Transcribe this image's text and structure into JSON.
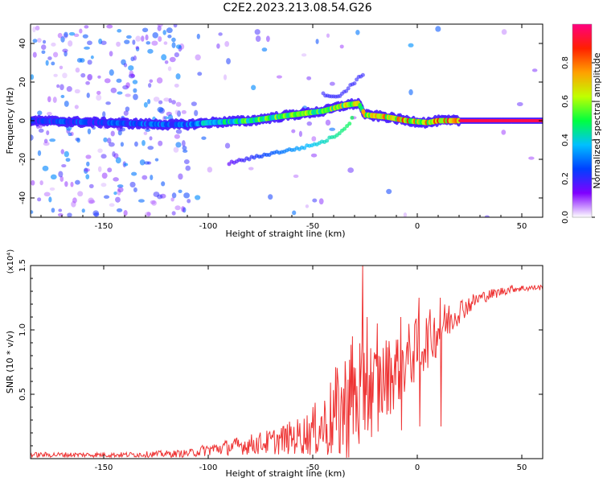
{
  "title": "C2E2.2023.213.08.54.G26",
  "chart_data": [
    {
      "type": "heatmap",
      "xlabel": "Height of straight line (km)",
      "ylabel": "Frequency (Hz)",
      "xlim": [
        -185,
        60
      ],
      "ylim": [
        -50,
        50
      ],
      "xticks": [
        -150,
        -100,
        -50,
        0,
        50
      ],
      "yticks": [
        -40,
        -20,
        0,
        20,
        40
      ],
      "colorbar": {
        "label": "Normalized spectral amplitude",
        "range": [
          0,
          1
        ],
        "ticks": [
          "0.0",
          "0.2",
          "0.4",
          "0.6",
          "0.8"
        ],
        "colormap": [
          "#ffffff",
          "#8000ff",
          "#0040ff",
          "#00c0ff",
          "#00ff40",
          "#c0ff00",
          "#ffa000",
          "#ff2000",
          "#ff0080"
        ]
      },
      "ridge": [
        {
          "x": -185,
          "freq": 0,
          "amp": 0.3
        },
        {
          "x": -150,
          "freq": -1,
          "amp": 0.3
        },
        {
          "x": -120,
          "freq": -2,
          "amp": 0.35
        },
        {
          "x": -110,
          "freq": -2,
          "amp": 0.35
        },
        {
          "x": -100,
          "freq": -1,
          "amp": 0.45
        },
        {
          "x": -80,
          "freq": 0,
          "amp": 0.6
        },
        {
          "x": -60,
          "freq": 3,
          "amp": 0.65
        },
        {
          "x": -45,
          "freq": 5,
          "amp": 0.7
        },
        {
          "x": -35,
          "freq": 8,
          "amp": 0.75
        },
        {
          "x": -28,
          "freq": 9,
          "amp": 0.7
        },
        {
          "x": -25,
          "freq": 3,
          "amp": 0.8
        },
        {
          "x": -15,
          "freq": 2,
          "amp": 0.85
        },
        {
          "x": -5,
          "freq": 0,
          "amp": 0.9
        },
        {
          "x": 5,
          "freq": -1,
          "amp": 0.85
        },
        {
          "x": 10,
          "freq": 0,
          "amp": 0.9
        },
        {
          "x": 20,
          "freq": 0,
          "amp": 0.95
        },
        {
          "x": 60,
          "freq": 0,
          "amp": 0.95
        }
      ],
      "secondary_branch": [
        {
          "x": -90,
          "freq": -22
        },
        {
          "x": -70,
          "freq": -17
        },
        {
          "x": -55,
          "freq": -14
        },
        {
          "x": -45,
          "freq": -11
        },
        {
          "x": -38,
          "freq": -7
        },
        {
          "x": -33,
          "freq": -2
        },
        {
          "x": -30,
          "freq": 3
        }
      ],
      "upper_branch": [
        {
          "x": -45,
          "freq": 14
        },
        {
          "x": -38,
          "freq": 12
        },
        {
          "x": -26,
          "freq": 24
        }
      ]
    },
    {
      "type": "line",
      "xlabel": "Height of straight line (km)",
      "ylabel": "SNR (10 * v/v)",
      "y_multiplier": "(x10⁴)",
      "xlim": [
        -185,
        60
      ],
      "ylim": [
        0,
        1.5
      ],
      "xticks": [
        -150,
        -100,
        -50,
        0,
        50
      ],
      "yticks": [
        0.5,
        1.0,
        1.5
      ],
      "color": "#ee3333",
      "envelope": [
        {
          "x": -185,
          "base": 0.03,
          "amp": 0.02
        },
        {
          "x": -140,
          "base": 0.03,
          "amp": 0.02
        },
        {
          "x": -110,
          "base": 0.04,
          "amp": 0.03
        },
        {
          "x": -100,
          "base": 0.07,
          "amp": 0.05
        },
        {
          "x": -85,
          "base": 0.1,
          "amp": 0.07
        },
        {
          "x": -70,
          "base": 0.13,
          "amp": 0.1
        },
        {
          "x": -55,
          "base": 0.18,
          "amp": 0.15
        },
        {
          "x": -45,
          "base": 0.25,
          "amp": 0.25
        },
        {
          "x": -38,
          "base": 0.35,
          "amp": 0.4
        },
        {
          "x": -30,
          "base": 0.45,
          "amp": 0.55
        },
        {
          "x": -25,
          "base": 0.55,
          "amp": 0.45
        },
        {
          "x": -20,
          "base": 0.55,
          "amp": 0.35
        },
        {
          "x": -10,
          "base": 0.7,
          "amp": 0.3
        },
        {
          "x": 0,
          "base": 0.85,
          "amp": 0.25
        },
        {
          "x": 10,
          "base": 1.0,
          "amp": 0.2
        },
        {
          "x": 20,
          "base": 1.15,
          "amp": 0.1
        },
        {
          "x": 30,
          "base": 1.25,
          "amp": 0.05
        },
        {
          "x": 45,
          "base": 1.32,
          "amp": 0.03
        },
        {
          "x": 60,
          "base": 1.33,
          "amp": 0.02
        }
      ],
      "peaks": [
        {
          "x": -26,
          "y": 1.5
        },
        {
          "x": -24,
          "y": 1.1
        },
        {
          "x": -31,
          "y": 0.95
        },
        {
          "x": -19,
          "y": 1.05
        },
        {
          "x": -8,
          "y": 1.1
        },
        {
          "x": 1,
          "y": 1.25
        },
        {
          "x": 11,
          "y": 1.25
        }
      ]
    }
  ]
}
